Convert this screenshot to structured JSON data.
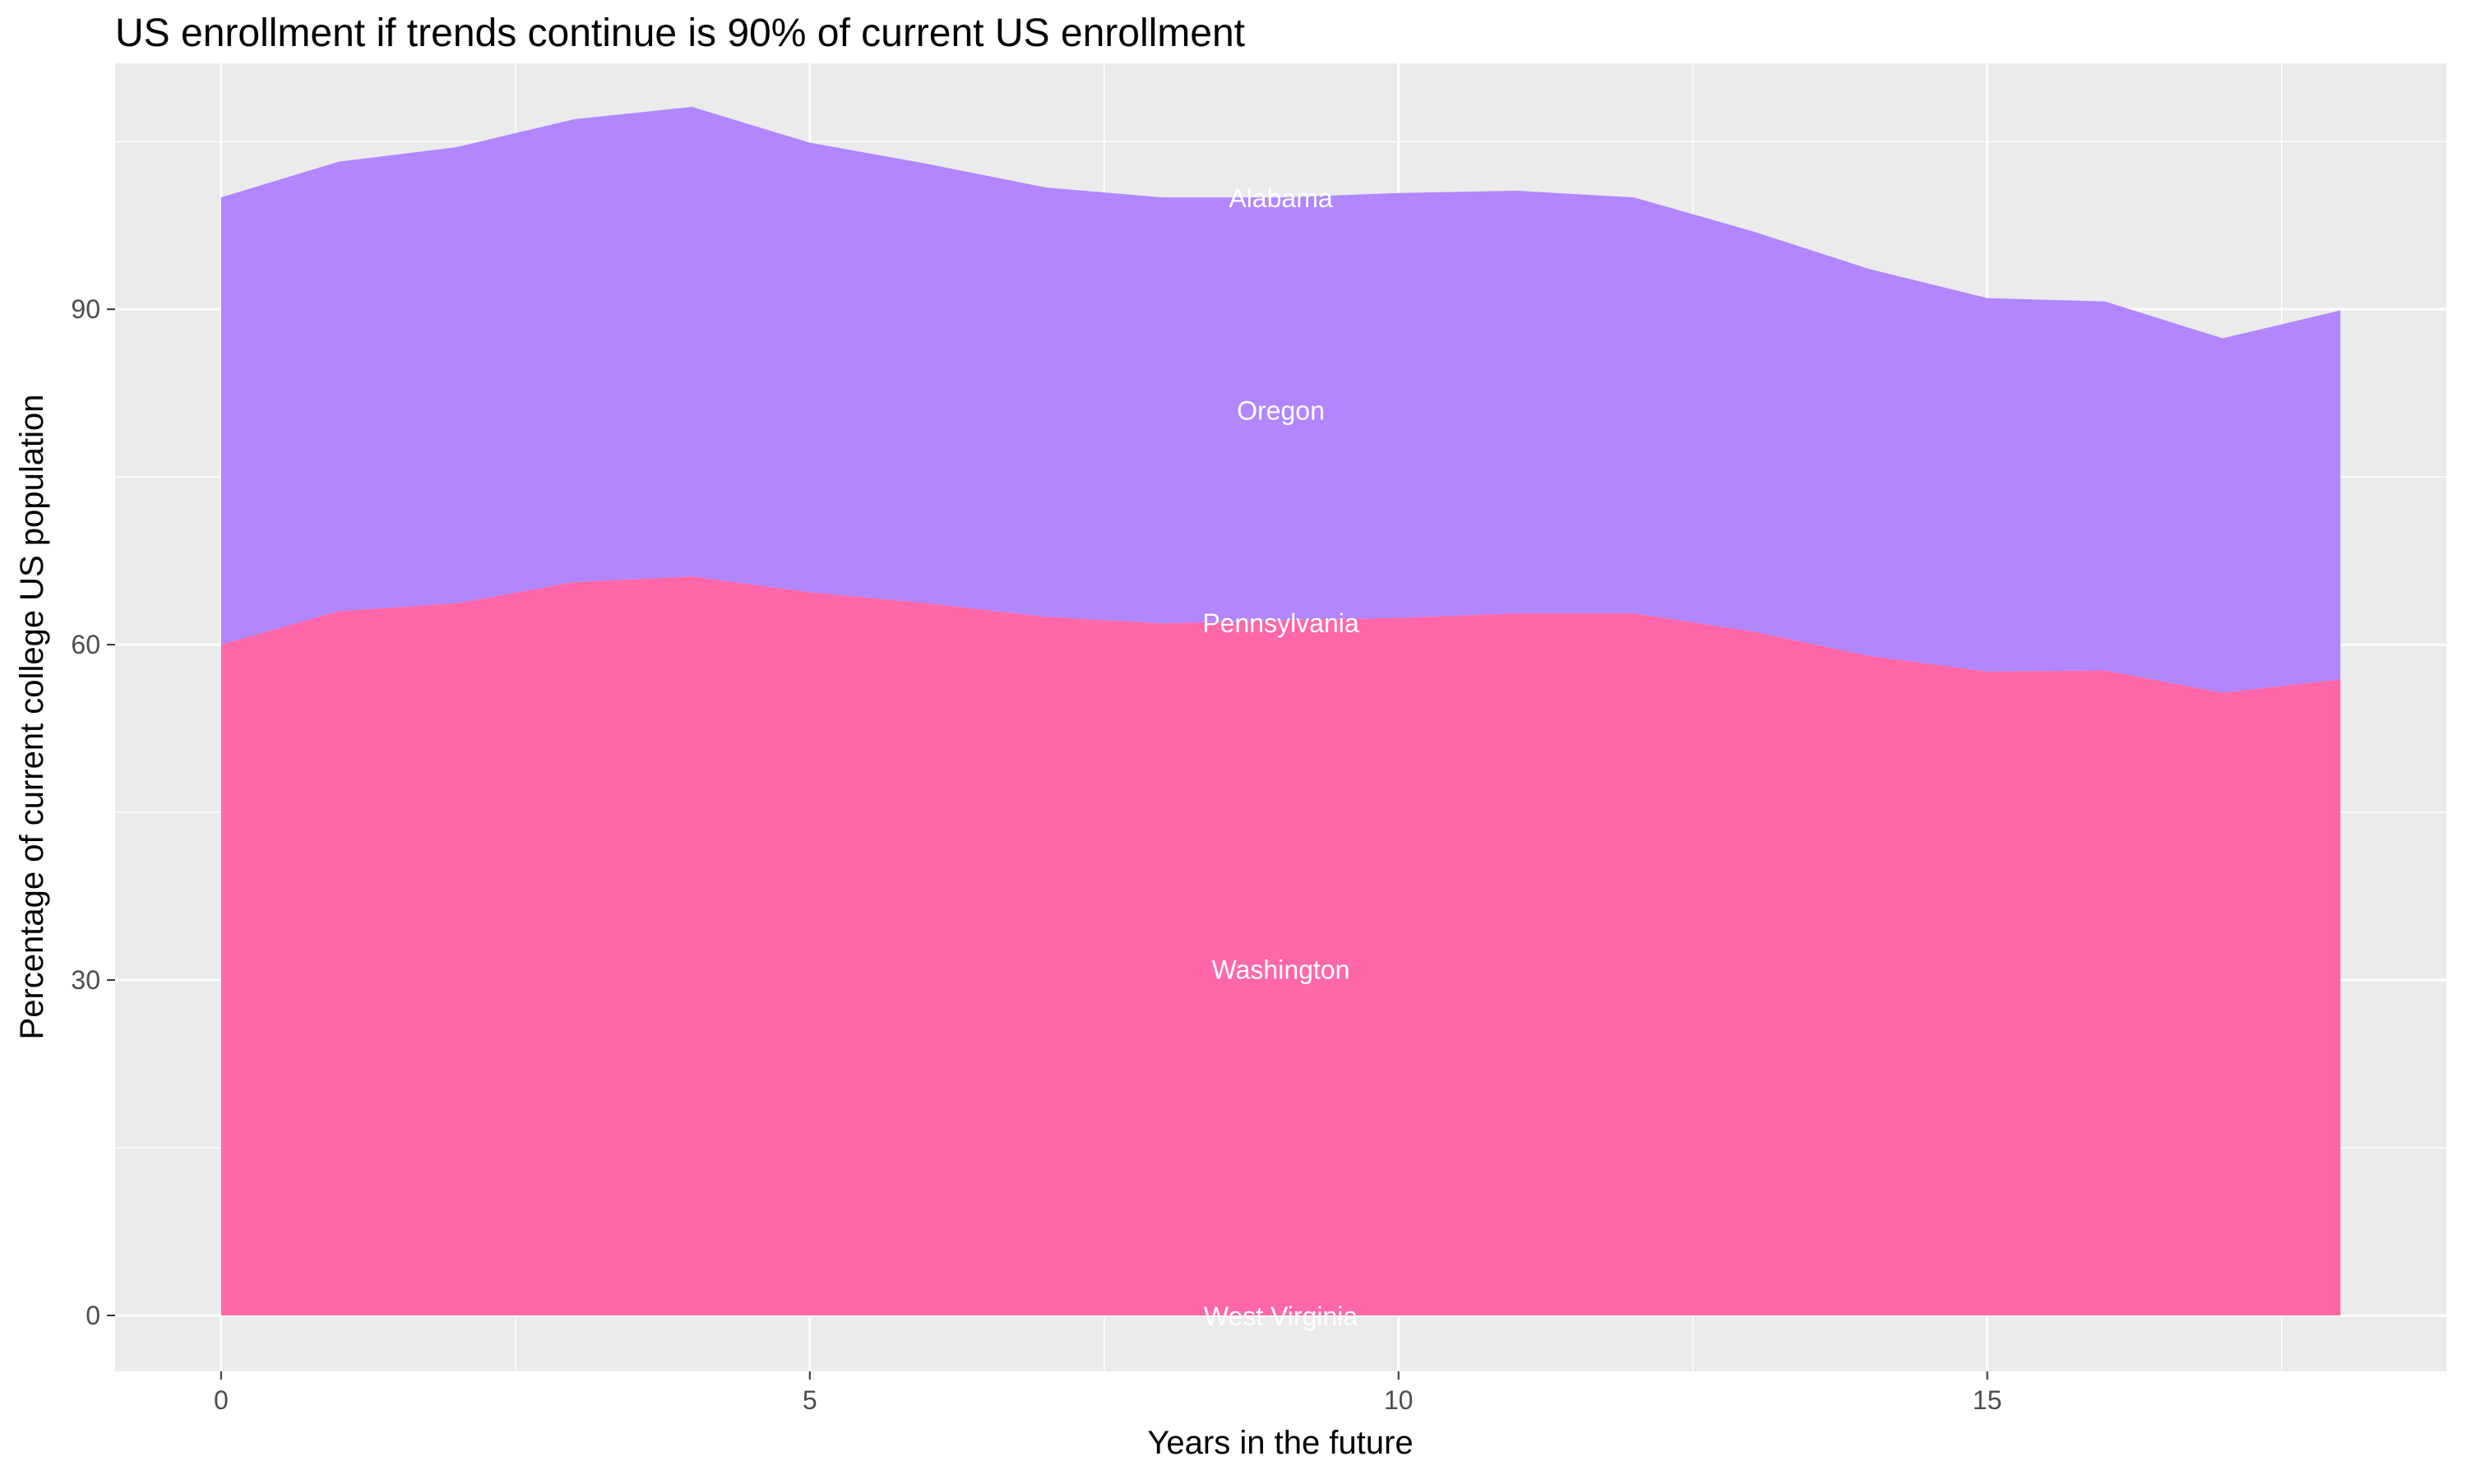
{
  "chart_data": {
    "type": "area",
    "stacked": true,
    "title": "US enrollment if trends continue is 90% of current US enrollment",
    "xlabel": "Years in the future",
    "ylabel": "Percentage of current college US population",
    "xlim": [
      -0.9,
      18.9
    ],
    "ylim": [
      -5,
      112
    ],
    "xticks": [
      0,
      5,
      10,
      15
    ],
    "yticks": [
      0,
      30,
      60,
      90
    ],
    "grid": true,
    "x": [
      0,
      1,
      2,
      3,
      4,
      5,
      6,
      7,
      8,
      9,
      10,
      11,
      12,
      13,
      14,
      15,
      16,
      17,
      18
    ],
    "series": [
      {
        "name": "Washington",
        "color": "#FF67A9",
        "values": [
          60,
          63,
          63.7,
          65.6,
          66.1,
          64.7,
          63.7,
          62.5,
          61.9,
          62.2,
          62.4,
          62.8,
          62.8,
          61.2,
          59,
          57.6,
          57.7,
          55.7,
          56.9
        ]
      },
      {
        "name": "Oregon",
        "color": "#B186FE",
        "values": [
          40,
          40.2,
          40.8,
          41.4,
          42,
          40.2,
          39.3,
          38.4,
          38.1,
          37.8,
          38,
          37.8,
          37.2,
          35.8,
          34.6,
          33.4,
          33,
          31.7,
          33
        ]
      }
    ],
    "annotations": [
      {
        "text": "Alabama",
        "x": 9,
        "y": 100
      },
      {
        "text": "Oregon",
        "x": 9,
        "y": 81
      },
      {
        "text": "Pennsylvania",
        "x": 9,
        "y": 62
      },
      {
        "text": "Washington",
        "x": 9,
        "y": 31
      },
      {
        "text": "West Virginia",
        "x": 9,
        "y": 0
      }
    ],
    "panel_color": "#EBEBEB"
  }
}
